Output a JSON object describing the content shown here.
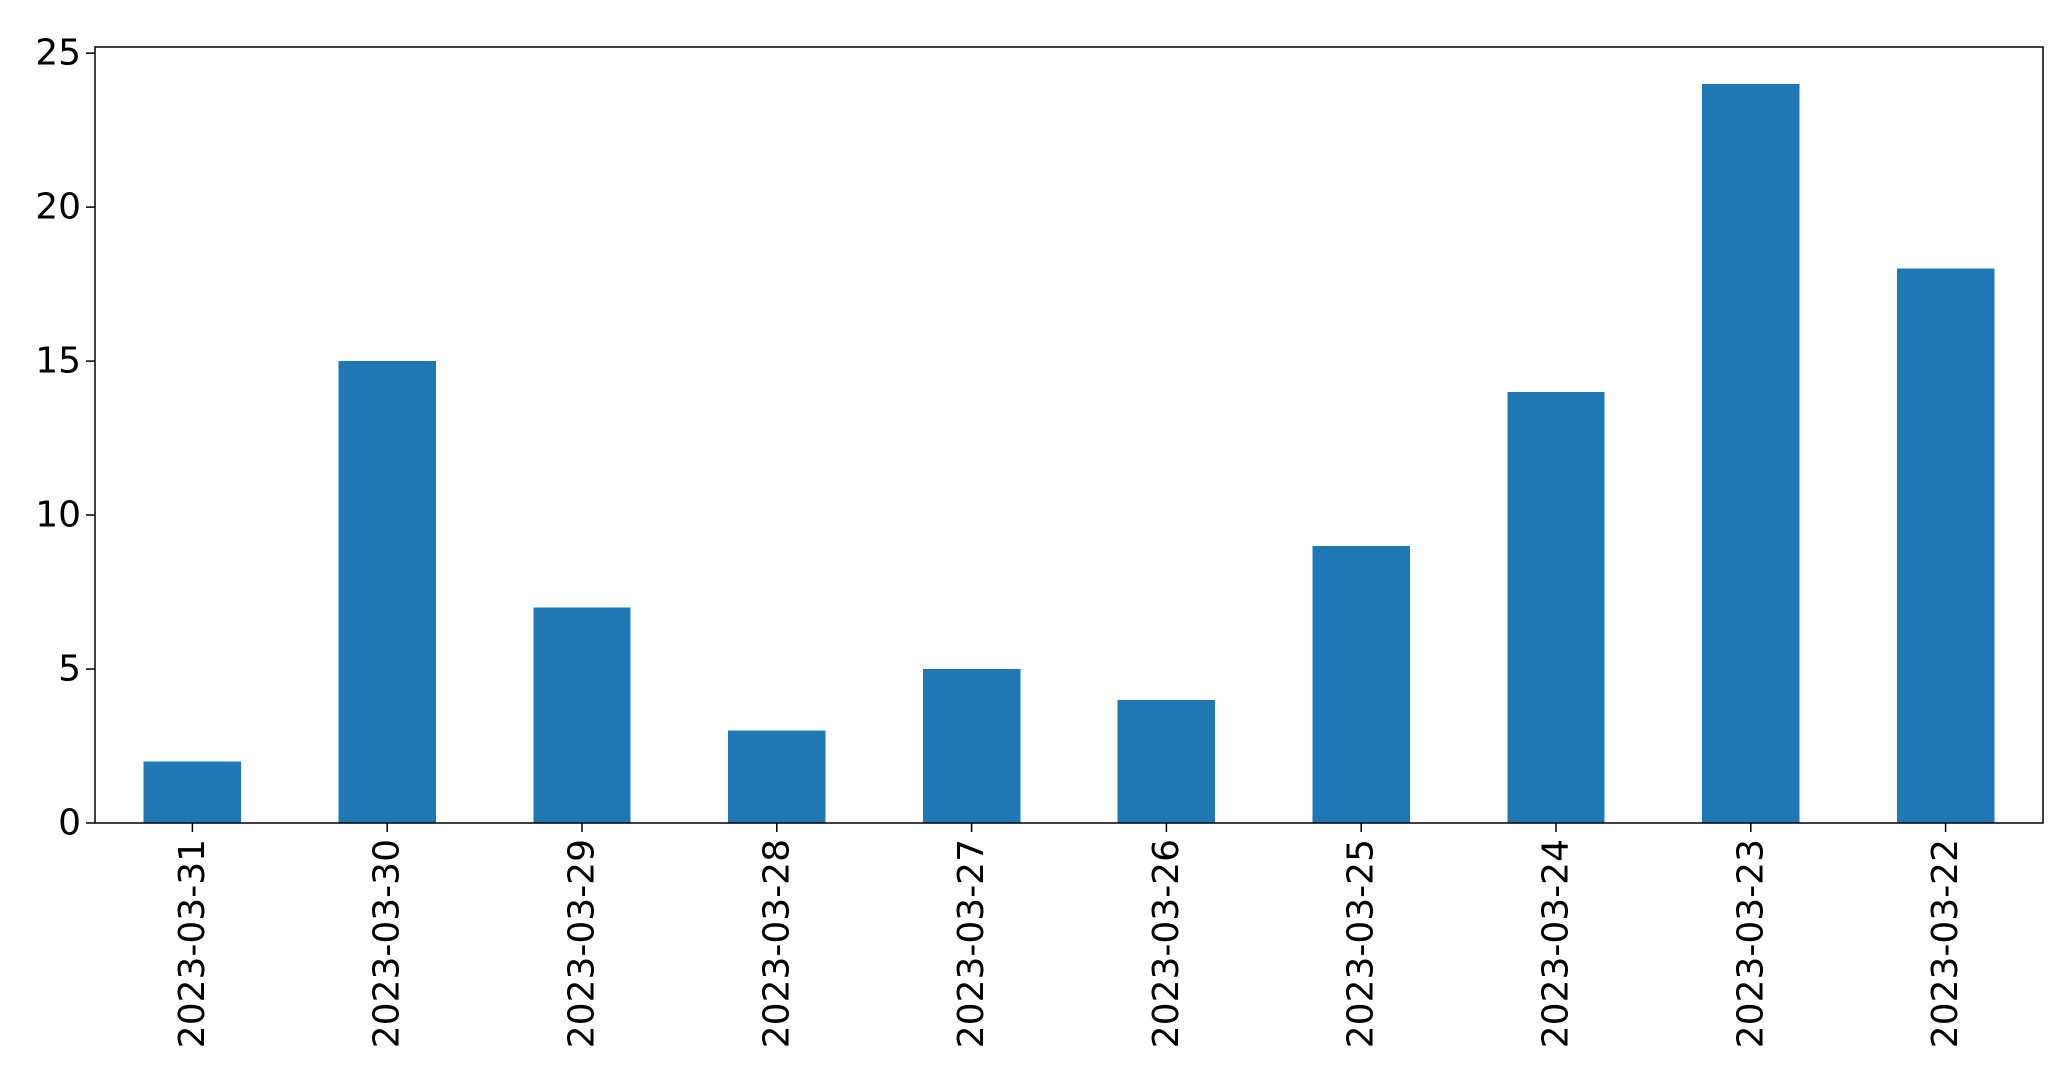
{
  "chart_data": {
    "type": "bar",
    "title": "",
    "xlabel": "",
    "ylabel": "",
    "categories": [
      "2023-03-31",
      "2023-03-30",
      "2023-03-29",
      "2023-03-28",
      "2023-03-27",
      "2023-03-26",
      "2023-03-25",
      "2023-03-24",
      "2023-03-23",
      "2023-03-22"
    ],
    "values": [
      2,
      15,
      7,
      3,
      5,
      4,
      9,
      14,
      24,
      18
    ],
    "ylim": [
      0,
      25.2
    ],
    "yticks": [
      0,
      5,
      10,
      15,
      20,
      25
    ],
    "grid": false,
    "legend": "none",
    "colors": {
      "bar": "#1f77b4",
      "axes": "#000000"
    }
  }
}
